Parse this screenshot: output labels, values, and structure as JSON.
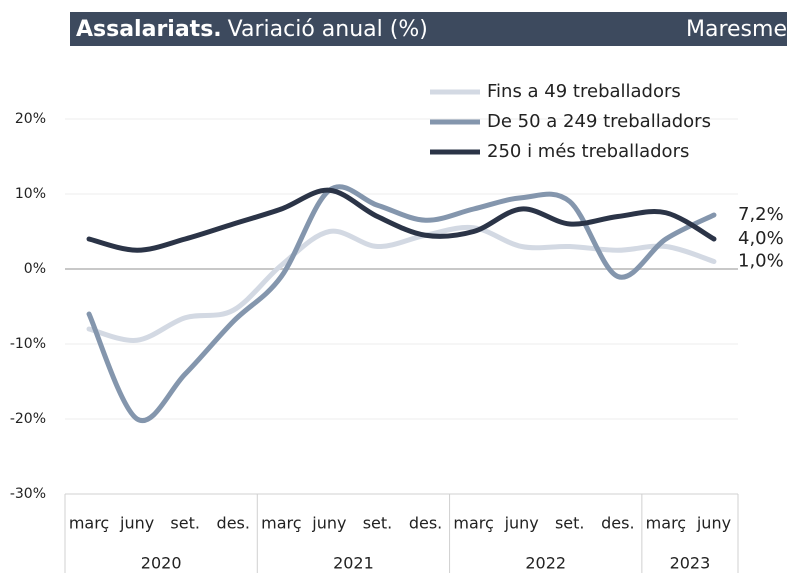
{
  "chart_data": {
    "type": "line",
    "title_bold": "Assalariats.",
    "title": "Variació anual (%)",
    "region": "Maresme",
    "categories": [
      "març",
      "juny",
      "set.",
      "des.",
      "març",
      "juny",
      "set.",
      "des.",
      "març",
      "juny",
      "set.",
      "des.",
      "març",
      "juny"
    ],
    "year_groups": [
      {
        "name": "2020",
        "count": 4
      },
      {
        "name": "2021",
        "count": 4
      },
      {
        "name": "2022",
        "count": 4
      },
      {
        "name": "2023",
        "count": 2
      }
    ],
    "series": [
      {
        "name": "Fins a 49 treballadors",
        "color": "#d3d9e3",
        "values": [
          -8,
          -9.5,
          -6.5,
          -5.5,
          0.5,
          5,
          3,
          4.5,
          5.5,
          3,
          3,
          2.5,
          3,
          1.0
        ],
        "value_labels": [
          null,
          null,
          null,
          null,
          null,
          null,
          null,
          null,
          null,
          null,
          null,
          null,
          null,
          "1,0%"
        ]
      },
      {
        "name": "De 50 a 249 treballadors",
        "color": "#8496ad",
        "values": [
          -6,
          -20,
          -14,
          -7,
          -1,
          10.5,
          8.5,
          6.5,
          8,
          9.5,
          9,
          -1,
          4,
          7.2
        ],
        "value_labels": [
          null,
          null,
          null,
          null,
          null,
          null,
          null,
          null,
          null,
          null,
          null,
          null,
          null,
          "7,2%"
        ]
      },
      {
        "name": "250 i més treballadors",
        "color": "#2b3447",
        "values": [
          4,
          2.5,
          4,
          6,
          8,
          10.5,
          7,
          4.5,
          5,
          8,
          6,
          7,
          7.5,
          4.0
        ],
        "value_labels": [
          null,
          null,
          null,
          null,
          null,
          null,
          null,
          null,
          null,
          null,
          null,
          null,
          null,
          "4,0%"
        ]
      }
    ],
    "ylim": [
      -30,
      25
    ],
    "yticks": [
      {
        "value": -30,
        "label": "-30%"
      },
      {
        "value": -20,
        "label": "-20%"
      },
      {
        "value": -10,
        "label": "-10%"
      },
      {
        "value": 0,
        "label": "0%"
      },
      {
        "value": 10,
        "label": "10%"
      },
      {
        "value": 20,
        "label": "20%"
      }
    ],
    "grid": true
  }
}
